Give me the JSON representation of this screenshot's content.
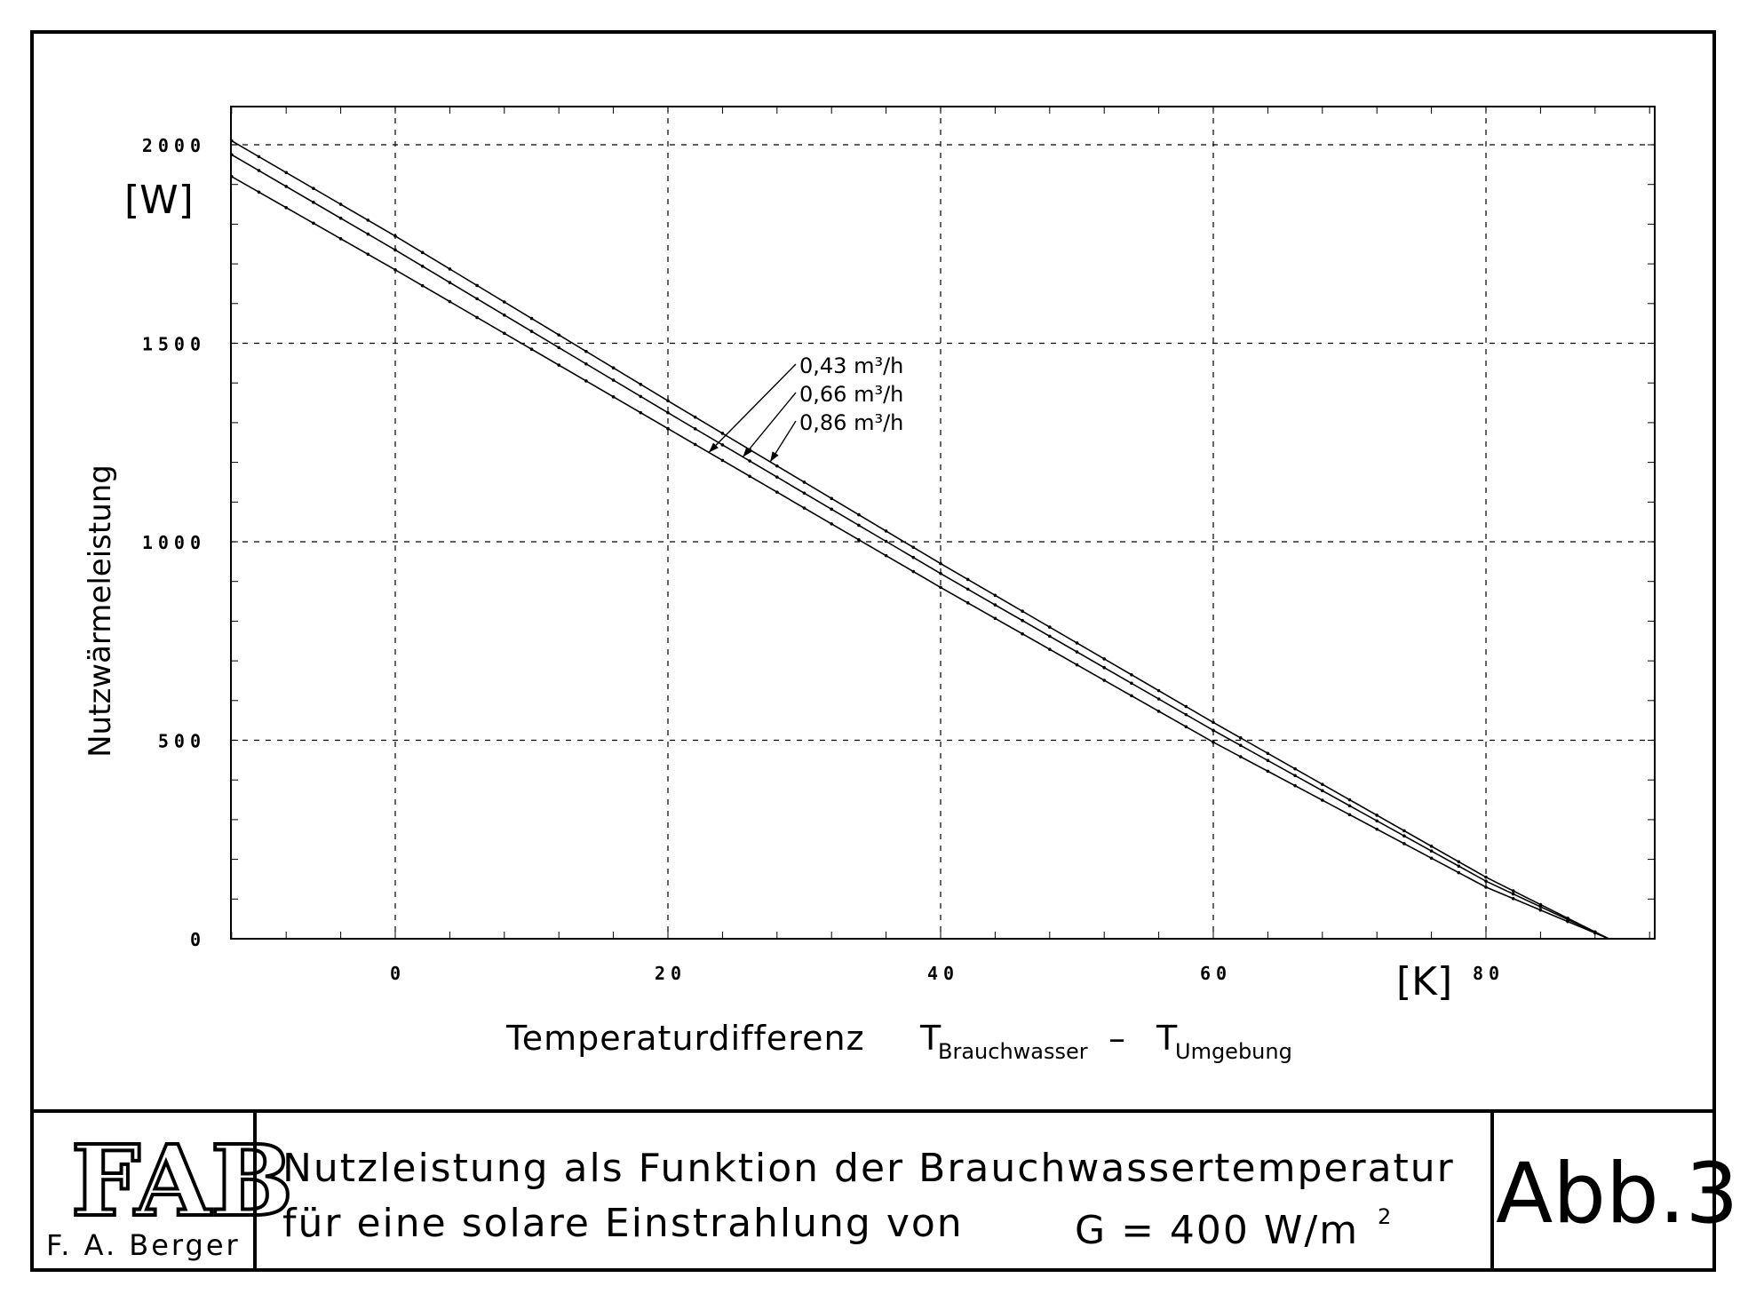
{
  "chart_data": {
    "type": "line",
    "xlabel": "Temperaturdifferenz",
    "xlabel_formula": {
      "t1": "T",
      "t1_sub": "Brauchwasser",
      "minus": "–",
      "t2": "T",
      "t2_sub": "Umgebung"
    },
    "xunit": "[K]",
    "ylabel": "Nutzwärmeleistung",
    "yunit": "[W]",
    "xlim": [
      -12,
      92
    ],
    "ylim": [
      0,
      2100
    ],
    "xticks": [
      0,
      20,
      40,
      60,
      80
    ],
    "yticks": [
      0,
      500,
      1000,
      1500,
      2000
    ],
    "x_tick_labels": [
      "0",
      "20",
      "40",
      "60",
      "80"
    ],
    "y_tick_labels": [
      "0",
      "500",
      "1000",
      "1500",
      "2000"
    ],
    "grid": true,
    "series": [
      {
        "name": "0,86 m³/h",
        "x": [
          -12,
          0,
          20,
          40,
          60,
          80,
          89
        ],
        "y": [
          2010,
          1770,
          1355,
          945,
          545,
          155,
          0
        ]
      },
      {
        "name": "0,66 m³/h",
        "x": [
          -12,
          0,
          20,
          40,
          60,
          80,
          89
        ],
        "y": [
          1975,
          1735,
          1325,
          920,
          525,
          145,
          0
        ]
      },
      {
        "name": "0,43 m³/h",
        "x": [
          -12,
          0,
          20,
          40,
          60,
          80,
          89
        ],
        "y": [
          1920,
          1685,
          1285,
          885,
          495,
          130,
          0
        ]
      }
    ],
    "annotations": [
      {
        "text": "0,43  m³/h",
        "series": "0,43 m³/h",
        "arrow_to_x": 23
      },
      {
        "text": "0,66  m³/h",
        "series": "0,66 m³/h",
        "arrow_to_x": 25.5
      },
      {
        "text": "0,86  m³/h",
        "series": "0,86 m³/h",
        "arrow_to_x": 27.5
      }
    ]
  },
  "title_block": {
    "author": "F. A. Berger",
    "logo_text": "FAB",
    "caption_line1": "Nutzleistung  als  Funktion  der  Brauchwassertemperatur",
    "caption_line2": "für  eine  solare  Einstrahlung  von",
    "irradiance": "G = 400 W/m",
    "irradiance_sup": "2",
    "figure_label": "Abb.3"
  }
}
